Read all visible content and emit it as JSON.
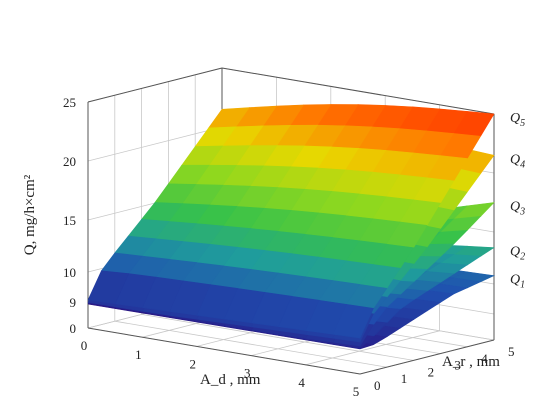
{
  "chart_data": {
    "type": "surface3d",
    "z_label": "Q, mg/h×cm²",
    "x_label": "A_d , mm",
    "y_label": "A_r , mm",
    "z_ticks": [
      "0",
      "9",
      "10",
      "15",
      "20",
      "25"
    ],
    "x_ticks": [
      "0",
      "1",
      "2",
      "3",
      "4",
      "5"
    ],
    "y_ticks": [
      "0",
      "1",
      "2",
      "3",
      "4",
      "5"
    ],
    "x_range": [
      0,
      5
    ],
    "y_range": [
      0,
      5
    ],
    "series": [
      {
        "name": "Q1",
        "label_main": "Q",
        "label_sub": "1",
        "corners": {
          "x0y0": 7.8,
          "x5y0": 8.2,
          "x0y5": 8.3,
          "x5y5": 10.8
        }
      },
      {
        "name": "Q2",
        "label_main": "Q",
        "label_sub": "2",
        "corners": {
          "x0y0": 8.0,
          "x5y0": 8.4,
          "x0y5": 8.6,
          "x5y5": 13.5
        }
      },
      {
        "name": "Q3",
        "label_main": "Q",
        "label_sub": "3",
        "corners": {
          "x0y0": 8.2,
          "x5y0": 8.6,
          "x0y5": 8.9,
          "x5y5": 17.5
        }
      },
      {
        "name": "Q4",
        "label_main": "Q",
        "label_sub": "4",
        "corners": {
          "x0y0": 8.4,
          "x5y0": 8.8,
          "x0y5": 21.0,
          "x5y5": 21.5
        }
      },
      {
        "name": "Q5",
        "label_main": "Q",
        "label_sub": "5",
        "corners": {
          "x0y0": 8.6,
          "x5y0": 9.0,
          "x0y5": 21.5,
          "x5y5": 25.0
        }
      }
    ],
    "colormap": [
      "#2b0a7a",
      "#1f4fb0",
      "#1f9c9c",
      "#37c24a",
      "#8fd81e",
      "#e8d800",
      "#ff7a00",
      "#ff2a00"
    ]
  }
}
